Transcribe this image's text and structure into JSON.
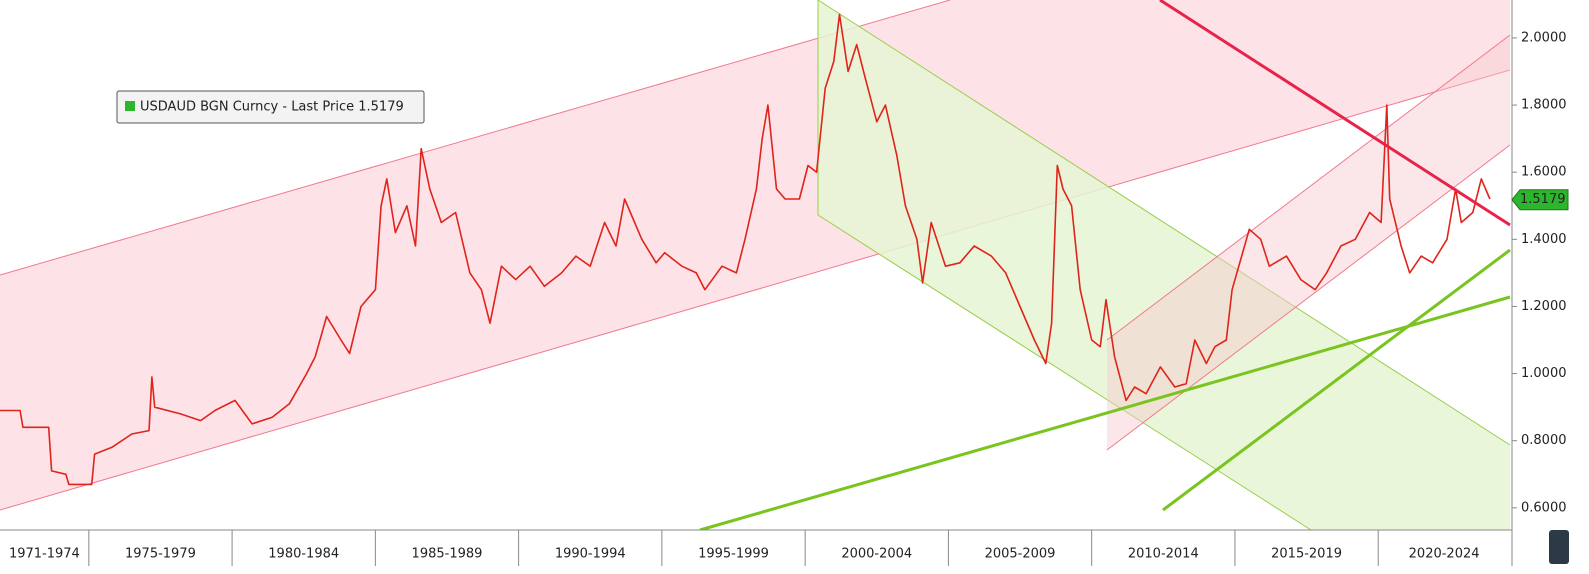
{
  "chart_data": {
    "type": "line",
    "series": [
      {
        "name": "USDAUD BGN Curncy - Last Price 1.5179",
        "color": "#e0241b",
        "legend_color": "#2db52d",
        "x": [
          1971.9,
          1972.6,
          1972.7,
          1973.6,
          1973.7,
          1974.2,
          1974.3,
          1975.1,
          1975.2,
          1975.8,
          1976.5,
          1977.1,
          1977.2,
          1977.3,
          1978.2,
          1978.9,
          1979.4,
          1980.1,
          1980.7,
          1981.4,
          1982.0,
          1982.6,
          1982.9,
          1983.3,
          1983.8,
          1984.1,
          1984.5,
          1985.0,
          1985.2,
          1985.4,
          1985.7,
          1986.1,
          1986.4,
          1986.6,
          1986.9,
          1987.3,
          1987.8,
          1988.3,
          1988.7,
          1989.0,
          1989.4,
          1989.9,
          1990.4,
          1990.9,
          1991.5,
          1992.0,
          1992.5,
          1993.0,
          1993.4,
          1993.7,
          1994.3,
          1994.8,
          1995.1,
          1995.7,
          1996.2,
          1996.5,
          1997.1,
          1997.6,
          1997.9,
          1998.3,
          1998.5,
          1998.7,
          1999.0,
          1999.3,
          1999.8,
          2000.1,
          2000.4,
          2000.7,
          2001.0,
          2001.2,
          2001.5,
          2001.8,
          2002.1,
          2002.5,
          2002.8,
          2003.2,
          2003.5,
          2003.9,
          2004.1,
          2004.4,
          2004.9,
          2005.4,
          2005.9,
          2006.5,
          2007.0,
          2007.5,
          2008.0,
          2008.4,
          2008.6,
          2008.8,
          2009.0,
          2009.3,
          2009.6,
          2010.0,
          2010.3,
          2010.5,
          2010.8,
          2011.2,
          2011.5,
          2011.9,
          2012.4,
          2012.9,
          2013.3,
          2013.6,
          2014.0,
          2014.3,
          2014.7,
          2014.9,
          2015.2,
          2015.5,
          2015.9,
          2016.2,
          2016.8,
          2017.3,
          2017.8,
          2018.2,
          2018.7,
          2019.2,
          2019.7,
          2020.1,
          2020.3,
          2020.4,
          2020.8,
          2021.1,
          2021.5,
          2021.9,
          2022.4,
          2022.7,
          2022.9,
          2023.3,
          2023.6,
          2023.9
        ],
        "values": [
          0.89,
          0.89,
          0.84,
          0.84,
          0.71,
          0.7,
          0.67,
          0.67,
          0.76,
          0.78,
          0.82,
          0.83,
          0.99,
          0.9,
          0.88,
          0.86,
          0.89,
          0.92,
          0.85,
          0.87,
          0.91,
          1.0,
          1.05,
          1.17,
          1.1,
          1.06,
          1.2,
          1.25,
          1.5,
          1.58,
          1.42,
          1.5,
          1.38,
          1.67,
          1.55,
          1.45,
          1.48,
          1.3,
          1.25,
          1.15,
          1.32,
          1.28,
          1.32,
          1.26,
          1.3,
          1.35,
          1.32,
          1.45,
          1.38,
          1.52,
          1.4,
          1.33,
          1.36,
          1.32,
          1.3,
          1.25,
          1.32,
          1.3,
          1.4,
          1.55,
          1.7,
          1.8,
          1.55,
          1.52,
          1.52,
          1.62,
          1.6,
          1.85,
          1.93,
          2.07,
          1.9,
          1.98,
          1.88,
          1.75,
          1.8,
          1.65,
          1.5,
          1.4,
          1.27,
          1.45,
          1.32,
          1.33,
          1.38,
          1.35,
          1.3,
          1.2,
          1.1,
          1.03,
          1.15,
          1.62,
          1.55,
          1.5,
          1.25,
          1.1,
          1.08,
          1.22,
          1.05,
          0.92,
          0.96,
          0.94,
          1.02,
          0.96,
          0.97,
          1.1,
          1.03,
          1.08,
          1.1,
          1.25,
          1.34,
          1.43,
          1.4,
          1.32,
          1.35,
          1.28,
          1.25,
          1.3,
          1.38,
          1.4,
          1.48,
          1.45,
          1.8,
          1.52,
          1.38,
          1.3,
          1.35,
          1.33,
          1.4,
          1.55,
          1.45,
          1.48,
          1.58,
          1.52
        ]
      }
    ],
    "last_value": 1.5179,
    "xlim": [
      1971.9,
      2024.6
    ],
    "xticks": [
      1975,
      1980,
      1985,
      1990,
      1995,
      2000,
      2005,
      2010,
      2015,
      2020
    ],
    "x_period_labels": [
      "1971-1974",
      "1975-1979",
      "1980-1984",
      "1985-1989",
      "1990-1994",
      "1995-1999",
      "2000-2004",
      "2005-2009",
      "2010-2014",
      "2015-2019",
      "2020-2024"
    ],
    "ylim": [
      0.534,
      2.113
    ],
    "yticks": [
      {
        "value": 0.6,
        "label": "0.6000"
      },
      {
        "value": 0.8,
        "label": "0.8000"
      },
      {
        "value": 1.0,
        "label": "1.0000"
      },
      {
        "value": 1.2,
        "label": "1.2000"
      },
      {
        "value": 1.4,
        "label": "1.4000"
      },
      {
        "value": 1.6,
        "label": "1.6000"
      },
      {
        "value": 1.8,
        "label": "1.8000"
      },
      {
        "value": 2.0,
        "label": "2.0000"
      }
    ],
    "grid": false
  }
}
